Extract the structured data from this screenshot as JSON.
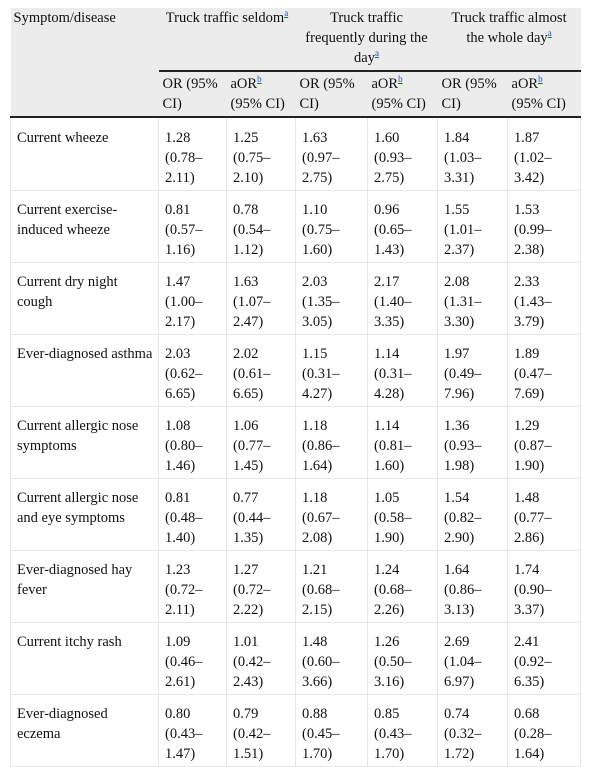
{
  "header": {
    "symptom_col": "Symptom/disease",
    "groups": [
      {
        "label": "Truck traffic seldom",
        "sup": "a"
      },
      {
        "label": "Truck traffic frequently during the day",
        "sup": "a"
      },
      {
        "label": "Truck traffic almost the whole day",
        "sup": "a"
      }
    ],
    "sub": {
      "or_label": "OR (95% CI)",
      "aor_label": "aOR",
      "aor_sup": "b",
      "aor_ci": "(95% CI)"
    }
  },
  "rows": [
    {
      "name": "Current wheeze",
      "vals": [
        "1.28 (0.78–2.11)",
        "1.25 (0.75–2.10)",
        "1.63 (0.97–2.75)",
        "1.60 (0.93–2.75)",
        "1.84 (1.03–3.31)",
        "1.87 (1.02–3.42)"
      ]
    },
    {
      "name": "Current exercise-induced wheeze",
      "vals": [
        "0.81 (0.57–1.16)",
        "0.78 (0.54–1.12)",
        "1.10 (0.75–1.60)",
        "0.96 (0.65–1.43)",
        "1.55 (1.01–2.37)",
        "1.53 (0.99–2.38)"
      ]
    },
    {
      "name": "Current dry night cough",
      "vals": [
        "1.47 (1.00–2.17)",
        "1.63 (1.07–2.47)",
        "2.03 (1.35–3.05)",
        "2.17 (1.40–3.35)",
        "2.08 (1.31–3.30)",
        "2.33 (1.43–3.79)"
      ]
    },
    {
      "name": "Ever-diagnosed asthma",
      "vals": [
        "2.03 (0.62–6.65)",
        "2.02 (0.61–6.65)",
        "1.15 (0.31–4.27)",
        "1.14 (0.31–4.28)",
        "1.97 (0.49–7.96)",
        "1.89 (0.47–7.69)"
      ]
    },
    {
      "name": "Current allergic nose symptoms",
      "vals": [
        "1.08 (0.80–1.46)",
        "1.06 (0.77–1.45)",
        "1.18 (0.86–1.64)",
        "1.14 (0.81–1.60)",
        "1.36 (0.93–1.98)",
        "1.29 (0.87–1.90)"
      ]
    },
    {
      "name": "Current allergic nose and eye symptoms",
      "vals": [
        "0.81 (0.48–1.40)",
        "0.77 (0.44–1.35)",
        "1.18 (0.67–2.08)",
        "1.05 (0.58–1.90)",
        "1.54 (0.82–2.90)",
        "1.48 (0.77–2.86)"
      ]
    },
    {
      "name": "Ever-diagnosed hay fever",
      "vals": [
        "1.23 (0.72–2.11)",
        "1.27 (0.72–2.22)",
        "1.21 (0.68–2.15)",
        "1.24 (0.68–2.26)",
        "1.64 (0.86–3.13)",
        "1.74 (0.90–3.37)"
      ]
    },
    {
      "name": "Current itchy rash",
      "vals": [
        "1.09 (0.46–2.61)",
        "1.01 (0.42–2.43)",
        "1.48 (0.60–3.66)",
        "1.26 (0.50–3.16)",
        "2.69 (1.04–6.97)",
        "2.41 (0.92–6.35)"
      ]
    },
    {
      "name": "Ever-diagnosed eczema",
      "vals": [
        "0.80 (0.43–1.47)",
        "0.79 (0.42–1.51)",
        "0.88 (0.45–1.70)",
        "0.85 (0.43–1.70)",
        "0.74 (0.32–1.72)",
        "0.68 (0.28–1.64)"
      ]
    }
  ]
}
